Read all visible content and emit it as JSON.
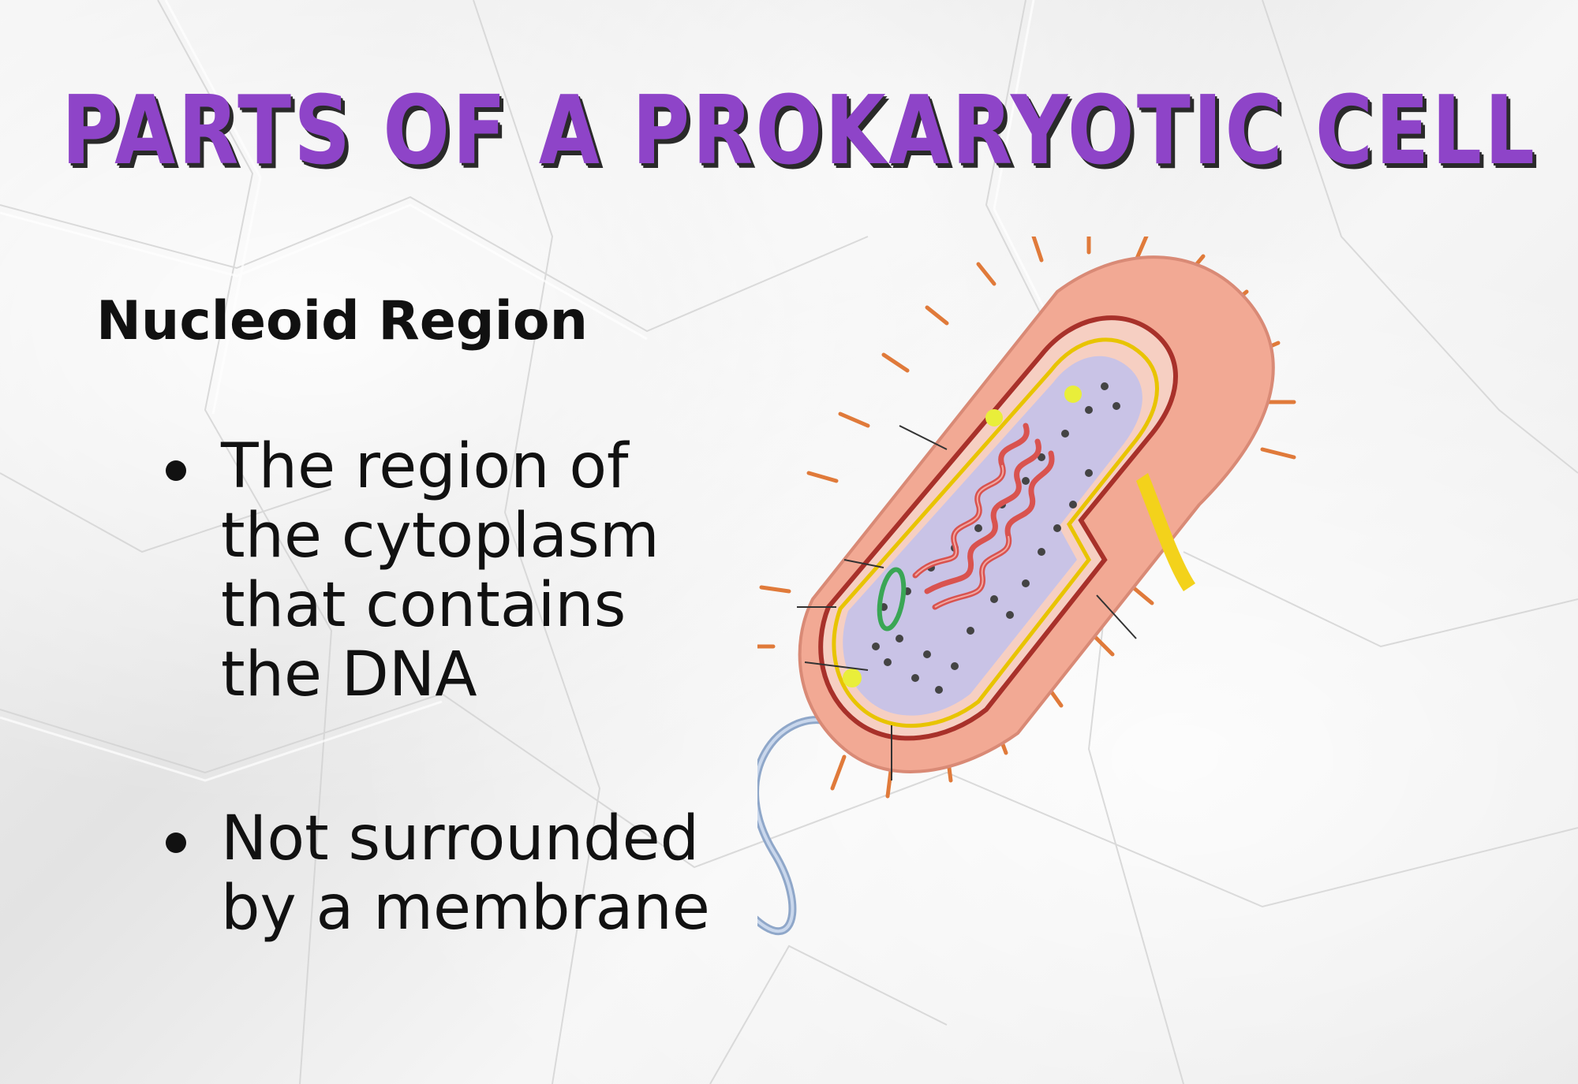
{
  "title": "PARTS OF A PROKARYOTIC CELL",
  "heading": "Nucleoid Region",
  "bullets": [
    {
      "line1": "The region of",
      "line2": "the cytoplasm",
      "line3": "that contains",
      "line4": "the DNA"
    },
    {
      "line1": "Not surrounded",
      "line2": "by a membrane"
    }
  ],
  "colors": {
    "title": "#8e44c8",
    "title_shadow": "#2a2a2a",
    "text": "#111111",
    "cell_wall": "#f2a994",
    "pili": "#e07a3a",
    "cytoplasm": "#c9c3e6",
    "dna": "#d9534f",
    "flagellum": "#a9bedb"
  },
  "illustration": {
    "subject": "prokaryotic-cell-cutaway",
    "parts": [
      "cell-wall",
      "capsule",
      "plasma-membrane",
      "pili",
      "cytoplasm",
      "ribosomes",
      "nucleoid-dna",
      "plasmid",
      "flagellum"
    ]
  }
}
